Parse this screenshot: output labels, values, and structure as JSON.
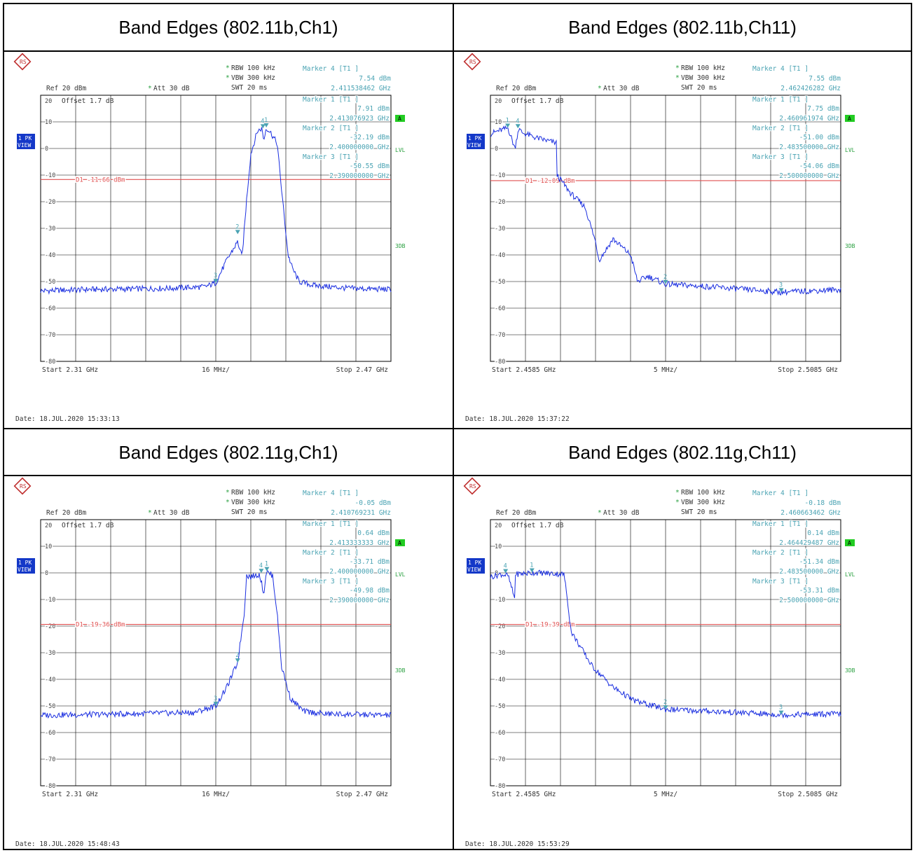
{
  "panels": [
    {
      "title": "Band Edges (802.11b,Ch1)",
      "rbw_label": "RBW",
      "rbw_value": "100 kHz",
      "vbw_label": "VBW",
      "vbw_value": "300 kHz",
      "swt_label": "SWT",
      "swt_value": "20 ms",
      "ref_label": "Ref",
      "ref_value": "20 dBm",
      "att_label": "Att",
      "att_value": "30 dB",
      "offset_label": "Offset",
      "offset_value": "1.7 dB",
      "trace_badge": [
        "1 PK",
        "VIEW"
      ],
      "side_labels": {
        "a": "A",
        "lvl": "LVL",
        "threedb": "3DB"
      },
      "markers_text": [
        [
          "Marker 4 [T1 ]",
          "7.54 dBm",
          "2.411538462 GHz"
        ],
        [
          "Marker 1 [T1 ]",
          "7.91 dBm",
          "2.413076923 GHz"
        ],
        [
          "Marker 2 [T1 ]",
          "-32.19 dBm",
          "2.400000000 GHz"
        ],
        [
          "Marker 3 [T1 ]",
          "-50.55 dBm",
          "2.390000000 GHz"
        ]
      ],
      "display_line": "D1 -11.66 dBm",
      "x_start": "Start 2.31 GHz",
      "x_div": "16 MHz/",
      "x_stop": "Stop 2.47 GHz",
      "date": "Date: 18.JUL.2020 15:33:13"
    },
    {
      "title": "Band Edges (802.11b,Ch11)",
      "rbw_label": "RBW",
      "rbw_value": "100 kHz",
      "vbw_label": "VBW",
      "vbw_value": "300 kHz",
      "swt_label": "SWT",
      "swt_value": "20 ms",
      "ref_label": "Ref",
      "ref_value": "20 dBm",
      "att_label": "Att",
      "att_value": "30 dB",
      "offset_label": "Offset",
      "offset_value": "1.7 dB",
      "trace_badge": [
        "1 PK",
        "VIEW"
      ],
      "side_labels": {
        "a": "A",
        "lvl": "LVL",
        "threedb": "3DB"
      },
      "markers_text": [
        [
          "Marker 4 [T1 ]",
          "7.55 dBm",
          "2.462426282 GHz"
        ],
        [
          "Marker 1 [T1 ]",
          "7.75 dBm",
          "2.460961974 GHz"
        ],
        [
          "Marker 2 [T1 ]",
          "-51.00 dBm",
          "2.483500000 GHz"
        ],
        [
          "Marker 3 [T1 ]",
          "-54.06 dBm",
          "2.500000000 GHz"
        ]
      ],
      "display_line": "D1 -12.09 dBm",
      "x_start": "Start 2.4585 GHz",
      "x_div": "5 MHz/",
      "x_stop": "Stop 2.5085 GHz",
      "date": "Date: 18.JUL.2020 15:37:22"
    },
    {
      "title": "Band Edges (802.11g,Ch1)",
      "rbw_label": "RBW",
      "rbw_value": "100 kHz",
      "vbw_label": "VBW",
      "vbw_value": "300 kHz",
      "swt_label": "SWT",
      "swt_value": "20 ms",
      "ref_label": "Ref",
      "ref_value": "20 dBm",
      "att_label": "Att",
      "att_value": "30 dB",
      "offset_label": "Offset",
      "offset_value": "1.7 dB",
      "trace_badge": [
        "1 PK",
        "VIEW"
      ],
      "side_labels": {
        "a": "A",
        "lvl": "LVL",
        "threedb": "3DB"
      },
      "markers_text": [
        [
          "Marker 4 [T1 ]",
          "-0.05 dBm",
          "2.410769231 GHz"
        ],
        [
          "Marker 1 [T1 ]",
          "0.64 dBm",
          "2.413333333 GHz"
        ],
        [
          "Marker 2 [T1 ]",
          "-33.71 dBm",
          "2.400000000 GHz"
        ],
        [
          "Marker 3 [T1 ]",
          "-49.98 dBm",
          "2.390000000 GHz"
        ]
      ],
      "display_line": "D1 -19.36 dBm",
      "x_start": "Start 2.31 GHz",
      "x_div": "16 MHz/",
      "x_stop": "Stop 2.47 GHz",
      "date": "Date: 18.JUL.2020 15:48:43"
    },
    {
      "title": "Band Edges (802.11g,Ch11)",
      "rbw_label": "RBW",
      "rbw_value": "100 kHz",
      "vbw_label": "VBW",
      "vbw_value": "300 kHz",
      "swt_label": "SWT",
      "swt_value": "20 ms",
      "ref_label": "Ref",
      "ref_value": "20 dBm",
      "att_label": "Att",
      "att_value": "30 dB",
      "offset_label": "Offset",
      "offset_value": "1.7 dB",
      "trace_badge": [
        "1 PK",
        "VIEW"
      ],
      "side_labels": {
        "a": "A",
        "lvl": "LVL",
        "threedb": "3DB"
      },
      "markers_text": [
        [
          "Marker 4 [T1 ]",
          "-0.18 dBm",
          "2.460663462 GHz"
        ],
        [
          "Marker 1 [T1 ]",
          "0.14 dBm",
          "2.464429487 GHz"
        ],
        [
          "Marker 2 [T1 ]",
          "-51.34 dBm",
          "2.483500000 GHz"
        ],
        [
          "Marker 3 [T1 ]",
          "-53.31 dBm",
          "2.500000000 GHz"
        ]
      ],
      "display_line": "D1 -19.39 dBm",
      "x_start": "Start 2.4585 GHz",
      "x_div": "5 MHz/",
      "x_stop": "Stop 2.5085 GHz",
      "date": "Date: 18.JUL.2020 15:53:29"
    }
  ],
  "chart_data": [
    {
      "type": "line",
      "title": "Band Edges (802.11b,Ch1)",
      "xlim": [
        2.31,
        2.47
      ],
      "ylim": [
        -80,
        20
      ],
      "yticks": [
        10,
        0,
        -10,
        -20,
        -30,
        -40,
        -50,
        -60,
        -70,
        -80
      ],
      "grid": true,
      "display_line_dbm": -11.66,
      "series": [
        {
          "x": [
            2.31,
            2.33,
            2.35,
            2.37,
            2.385,
            2.39,
            2.395,
            2.4,
            2.402,
            2.404,
            2.406,
            2.409,
            2.411,
            2.412,
            2.413,
            2.415,
            2.418,
            2.42,
            2.423,
            2.425,
            2.428,
            2.435,
            2.45,
            2.47
          ],
          "y": [
            -53.5,
            -53,
            -52.8,
            -52.5,
            -52,
            -50.5,
            -42,
            -35,
            -41,
            -20,
            -2,
            6.5,
            7.5,
            3,
            7.9,
            6,
            2,
            -15,
            -40,
            -45,
            -50,
            -51.5,
            -52.5,
            -53
          ]
        }
      ],
      "markers": [
        {
          "id": 4,
          "x": 2.411538462,
          "y": 7.54
        },
        {
          "id": 1,
          "x": 2.413076923,
          "y": 7.91
        },
        {
          "id": 2,
          "x": 2.4,
          "y": -32.19
        },
        {
          "id": 3,
          "x": 2.39,
          "y": -50.55
        }
      ]
    },
    {
      "type": "line",
      "title": "Band Edges (802.11b,Ch11)",
      "xlim": [
        2.4585,
        2.5085
      ],
      "ylim": [
        -80,
        20
      ],
      "yticks": [
        10,
        0,
        -10,
        -20,
        -30,
        -40,
        -50,
        -60,
        -70,
        -80
      ],
      "grid": true,
      "display_line_dbm": -12.09,
      "series": [
        {
          "x": [
            2.4585,
            2.4595,
            2.461,
            2.462,
            2.4625,
            2.463,
            2.465,
            2.468,
            2.468,
            2.47,
            2.472,
            2.4735,
            2.474,
            2.476,
            2.4785,
            2.4795,
            2.481,
            2.4835,
            2.49,
            2.5,
            2.5085
          ],
          "y": [
            5.5,
            6.5,
            7.7,
            0,
            7.5,
            6,
            4,
            2,
            -10,
            -17,
            -22,
            -35,
            -42,
            -34,
            -40,
            -50,
            -48,
            -51,
            -52,
            -54,
            -53
          ]
        }
      ],
      "markers": [
        {
          "id": 4,
          "x": 2.462426282,
          "y": 7.55
        },
        {
          "id": 1,
          "x": 2.460961974,
          "y": 7.75
        },
        {
          "id": 2,
          "x": 2.4835,
          "y": -51.0
        },
        {
          "id": 3,
          "x": 2.5,
          "y": -54.06
        }
      ]
    },
    {
      "type": "line",
      "title": "Band Edges (802.11g,Ch1)",
      "xlim": [
        2.31,
        2.47
      ],
      "ylim": [
        -80,
        20
      ],
      "yticks": [
        10,
        0,
        -10,
        -20,
        -30,
        -40,
        -50,
        -60,
        -70,
        -80
      ],
      "grid": true,
      "display_line_dbm": -19.36,
      "series": [
        {
          "x": [
            2.31,
            2.35,
            2.38,
            2.39,
            2.395,
            2.4,
            2.403,
            2.404,
            2.406,
            2.41,
            2.412,
            2.413,
            2.415,
            2.416,
            2.418,
            2.42,
            2.424,
            2.43,
            2.44,
            2.47
          ],
          "y": [
            -53.5,
            -53,
            -52.5,
            -50,
            -43,
            -33.7,
            -15,
            -1,
            -1.5,
            -0.5,
            -8,
            0.6,
            -0.5,
            -1,
            -15,
            -35,
            -47,
            -52,
            -53,
            -53.5
          ]
        }
      ],
      "markers": [
        {
          "id": 4,
          "x": 2.410769231,
          "y": -0.05
        },
        {
          "id": 1,
          "x": 2.413333333,
          "y": 0.64
        },
        {
          "id": 2,
          "x": 2.4,
          "y": -33.71
        },
        {
          "id": 3,
          "x": 2.39,
          "y": -49.98
        }
      ]
    },
    {
      "type": "line",
      "title": "Band Edges (802.11g,Ch11)",
      "xlim": [
        2.4585,
        2.5085
      ],
      "ylim": [
        -80,
        20
      ],
      "yticks": [
        10,
        0,
        -10,
        -20,
        -30,
        -40,
        -50,
        -60,
        -70,
        -80
      ],
      "grid": true,
      "display_line_dbm": -19.39,
      "series": [
        {
          "x": [
            2.4585,
            2.46,
            2.461,
            2.462,
            2.462,
            2.465,
            2.469,
            2.4695,
            2.47,
            2.473,
            2.476,
            2.479,
            2.4835,
            2.49,
            2.5,
            2.5085
          ],
          "y": [
            -1.5,
            -0.5,
            -1,
            -10,
            -0.5,
            0.1,
            -0.5,
            -10,
            -22,
            -35,
            -43,
            -48,
            -51.3,
            -52,
            -53.3,
            -53
          ]
        }
      ],
      "markers": [
        {
          "id": 4,
          "x": 2.460663462,
          "y": -0.18
        },
        {
          "id": 1,
          "x": 2.464429487,
          "y": 0.14
        },
        {
          "id": 2,
          "x": 2.4835,
          "y": -51.34
        },
        {
          "id": 3,
          "x": 2.5,
          "y": -53.31
        }
      ]
    }
  ]
}
